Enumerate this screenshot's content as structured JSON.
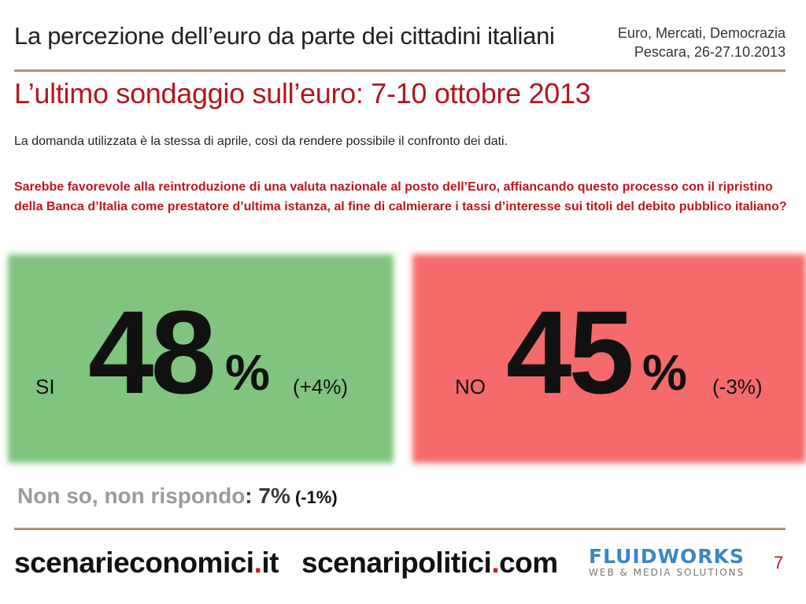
{
  "header": {
    "title": "La percezione dell’euro da parte dei cittadini italiani",
    "event_line1": "Euro, Mercati, Democrazia",
    "event_line2": "Pescara, 26-27.10.2013"
  },
  "slide": {
    "subtitle": "L’ultimo sondaggio sull’euro: 7-10 ottobre 2013",
    "intro": "La domanda utilizzata è la stessa di aprile, così da rendere possibile il confronto dei dati.",
    "question": "Sarebbe favorevole alla reintroduzione di una valuta nazionale al posto dell’Euro, affiancando questo processo con il ripristino della Banca d’Italia come prestatore d’ultima istanza, al fine di calmierare i tassi d’interesse sui titoli del debito pubblico italiano?"
  },
  "results": {
    "si": {
      "label": "SI",
      "value": "48",
      "pct_sign": "%",
      "delta": "(+4%)",
      "color": "#80c47f"
    },
    "no": {
      "label": "NO",
      "value": "45",
      "pct_sign": "%",
      "delta": "(-3%)",
      "color": "#f56a6a"
    },
    "nonso": {
      "label": "Non so, non rispondo",
      "colon": ":",
      "value": "7%",
      "delta": "(-1%)"
    }
  },
  "footer": {
    "site1_name": "scenarieconomici",
    "site1_dot": ".",
    "site1_tld": "it",
    "site2_name": "scenaripolitici",
    "site2_dot": ".",
    "site2_tld": "com",
    "logo_top": "FLUIDWORKS",
    "logo_bottom": "WEB & MEDIA SOLUTIONS",
    "page_number": "7"
  }
}
